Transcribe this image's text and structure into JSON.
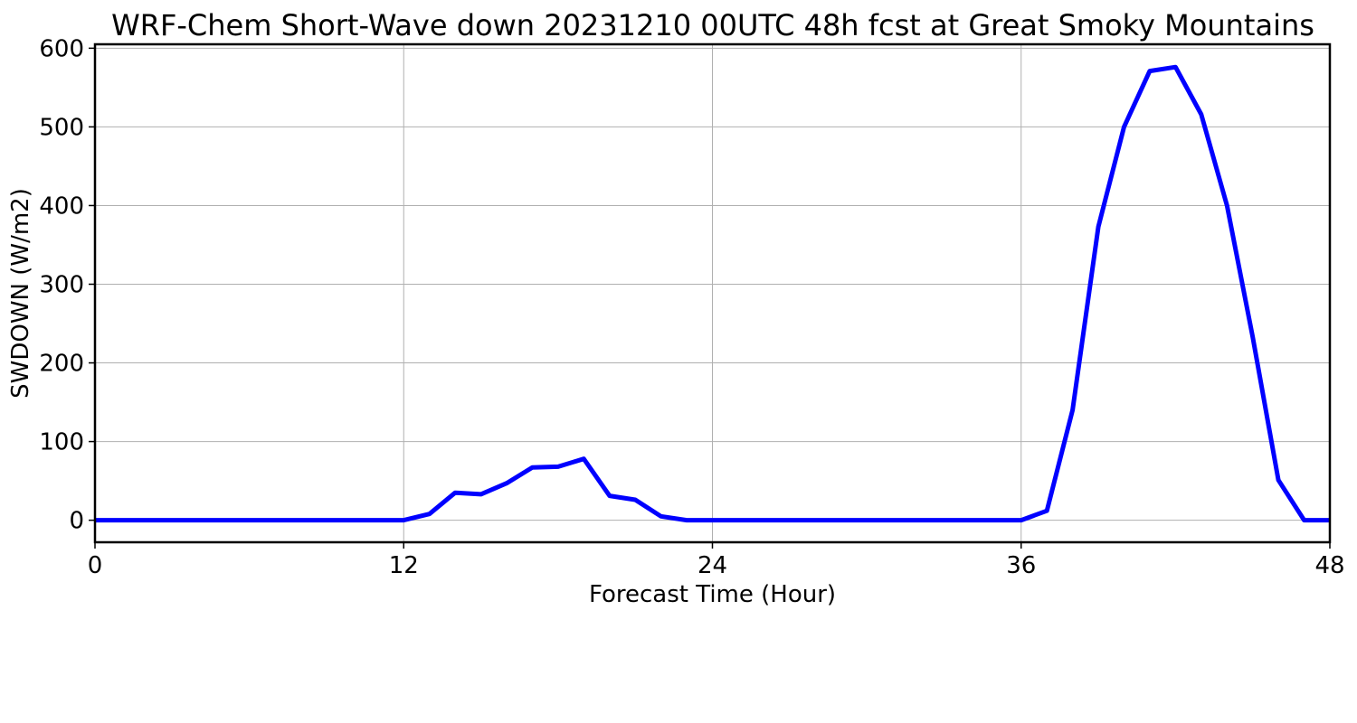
{
  "chart_data": {
    "type": "line",
    "title": "WRF-Chem Short-Wave down  20231210 00UTC 48h fcst at Great Smoky Mountains",
    "xlabel": "Forecast Time (Hour)",
    "ylabel": "SWDOWN  (W/m2)",
    "xlim": [
      0,
      48
    ],
    "ylim": [
      -28,
      605
    ],
    "xticks": [
      0,
      12,
      24,
      36,
      48
    ],
    "yticks": [
      0,
      100,
      200,
      300,
      400,
      500,
      600
    ],
    "grid": true,
    "series": [
      {
        "color": "#0000ff",
        "x": [
          0,
          1,
          2,
          3,
          4,
          5,
          6,
          7,
          8,
          9,
          10,
          11,
          12,
          13,
          14,
          15,
          16,
          17,
          18,
          19,
          20,
          21,
          22,
          23,
          24,
          25,
          26,
          27,
          28,
          29,
          30,
          31,
          32,
          33,
          34,
          35,
          36,
          37,
          38,
          39,
          40,
          41,
          42,
          43,
          44,
          45,
          46,
          47,
          48
        ],
        "y": [
          0,
          0,
          0,
          0,
          0,
          0,
          0,
          0,
          0,
          0,
          0,
          0,
          0,
          8,
          35,
          33,
          47,
          67,
          68,
          78,
          31,
          26,
          5,
          0,
          0,
          0,
          0,
          0,
          0,
          0,
          0,
          0,
          0,
          0,
          0,
          0,
          0,
          12,
          140,
          373,
          500,
          571,
          576,
          516,
          400,
          233,
          51,
          0,
          0
        ]
      }
    ]
  }
}
